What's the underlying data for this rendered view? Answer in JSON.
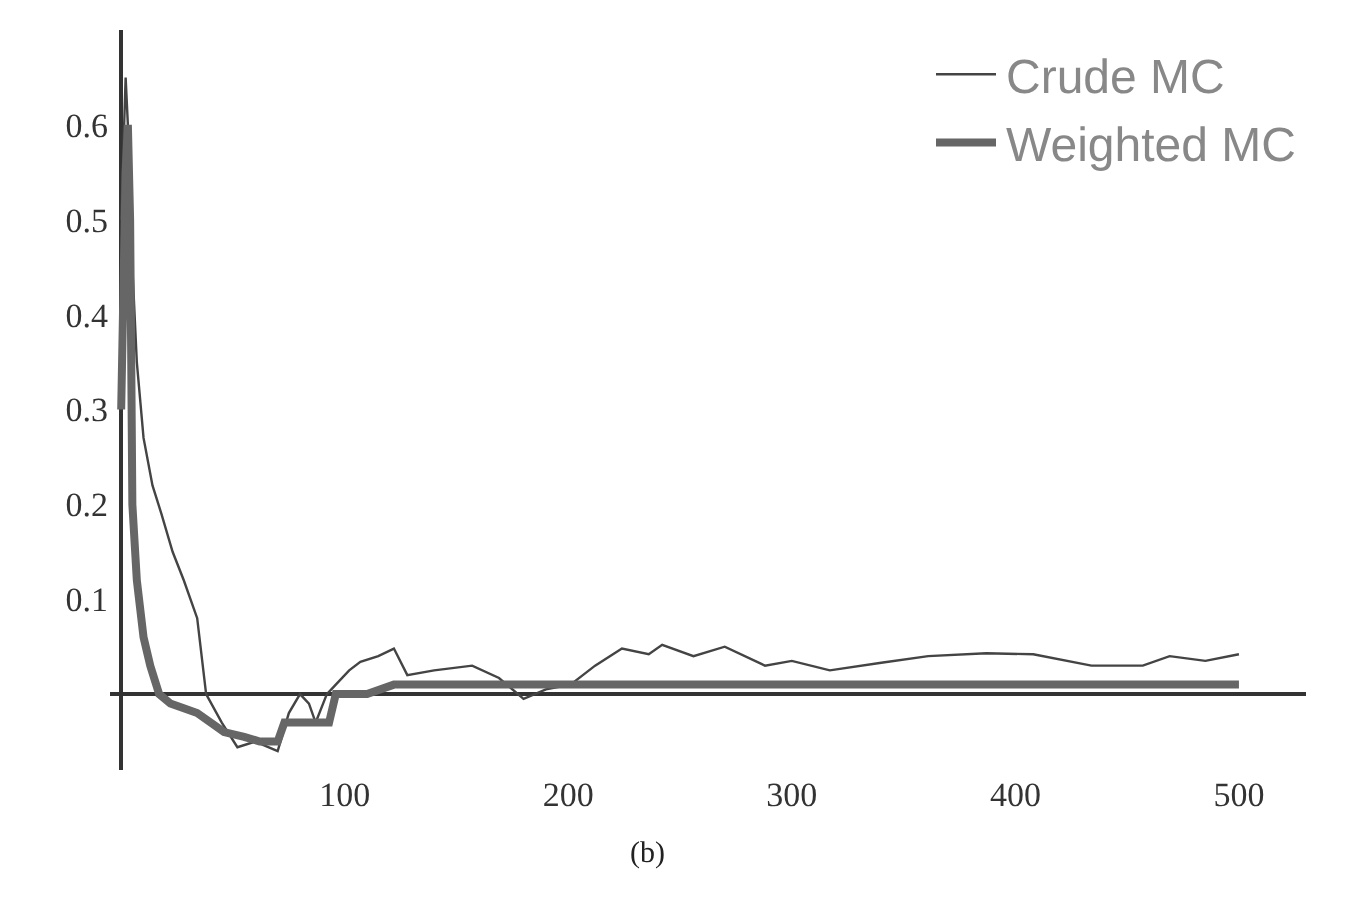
{
  "chart_data": {
    "type": "line",
    "annotations": [
      "(b)"
    ],
    "series": [
      {
        "name": "Crude MC",
        "color": "#444444",
        "x": [
          0,
          2,
          3,
          5,
          7,
          10,
          14,
          18,
          23,
          28,
          34,
          38,
          45,
          52,
          60,
          70,
          75,
          80,
          84,
          87,
          92,
          96,
          102,
          107,
          115,
          122,
          128,
          140,
          157,
          169,
          180,
          190,
          201,
          212,
          224,
          236,
          242,
          256,
          270,
          288,
          300,
          317,
          340,
          361,
          387,
          408,
          434,
          457,
          469,
          485,
          500
        ],
        "values": [
          0.5,
          0.65,
          0.6,
          0.45,
          0.35,
          0.27,
          0.22,
          0.19,
          0.15,
          0.12,
          0.08,
          0.0,
          -0.03,
          -0.056,
          -0.05,
          -0.06,
          -0.02,
          0.0,
          -0.01,
          -0.03,
          0.0,
          0.01,
          0.025,
          0.034,
          0.04,
          0.048,
          0.02,
          0.025,
          0.03,
          0.017,
          -0.005,
          0.005,
          0.01,
          0.03,
          0.048,
          0.042,
          0.052,
          0.04,
          0.05,
          0.03,
          0.035,
          0.025,
          0.033,
          0.04,
          0.043,
          0.042,
          0.03,
          0.03,
          0.04,
          0.035,
          0.042
        ]
      },
      {
        "name": "Weighted MC",
        "color": "#666666",
        "x": [
          0,
          2,
          3,
          4,
          5,
          7,
          10,
          13,
          17,
          22,
          28,
          34,
          40,
          46,
          55,
          62,
          70,
          73,
          80,
          88,
          93,
          96,
          100,
          110,
          122,
          140,
          200,
          300,
          400,
          500
        ],
        "values": [
          0.3,
          0.55,
          0.6,
          0.5,
          0.2,
          0.12,
          0.06,
          0.03,
          0.0,
          -0.01,
          -0.015,
          -0.02,
          -0.03,
          -0.04,
          -0.045,
          -0.05,
          -0.05,
          -0.03,
          -0.03,
          -0.03,
          -0.03,
          0.0,
          0.0,
          0.0,
          0.01,
          0.01,
          0.01,
          0.01,
          0.01,
          0.01
        ]
      }
    ],
    "xlim": [
      -5,
      530
    ],
    "xticks": [
      100,
      200,
      300,
      400,
      500
    ],
    "ylim": [
      -0.08,
      0.7
    ],
    "yticks": [
      0.1,
      0.2,
      0.3,
      0.4,
      0.5,
      0.6
    ],
    "grid": false,
    "legend": "top right",
    "marker": "none",
    "line_style": "solid"
  }
}
